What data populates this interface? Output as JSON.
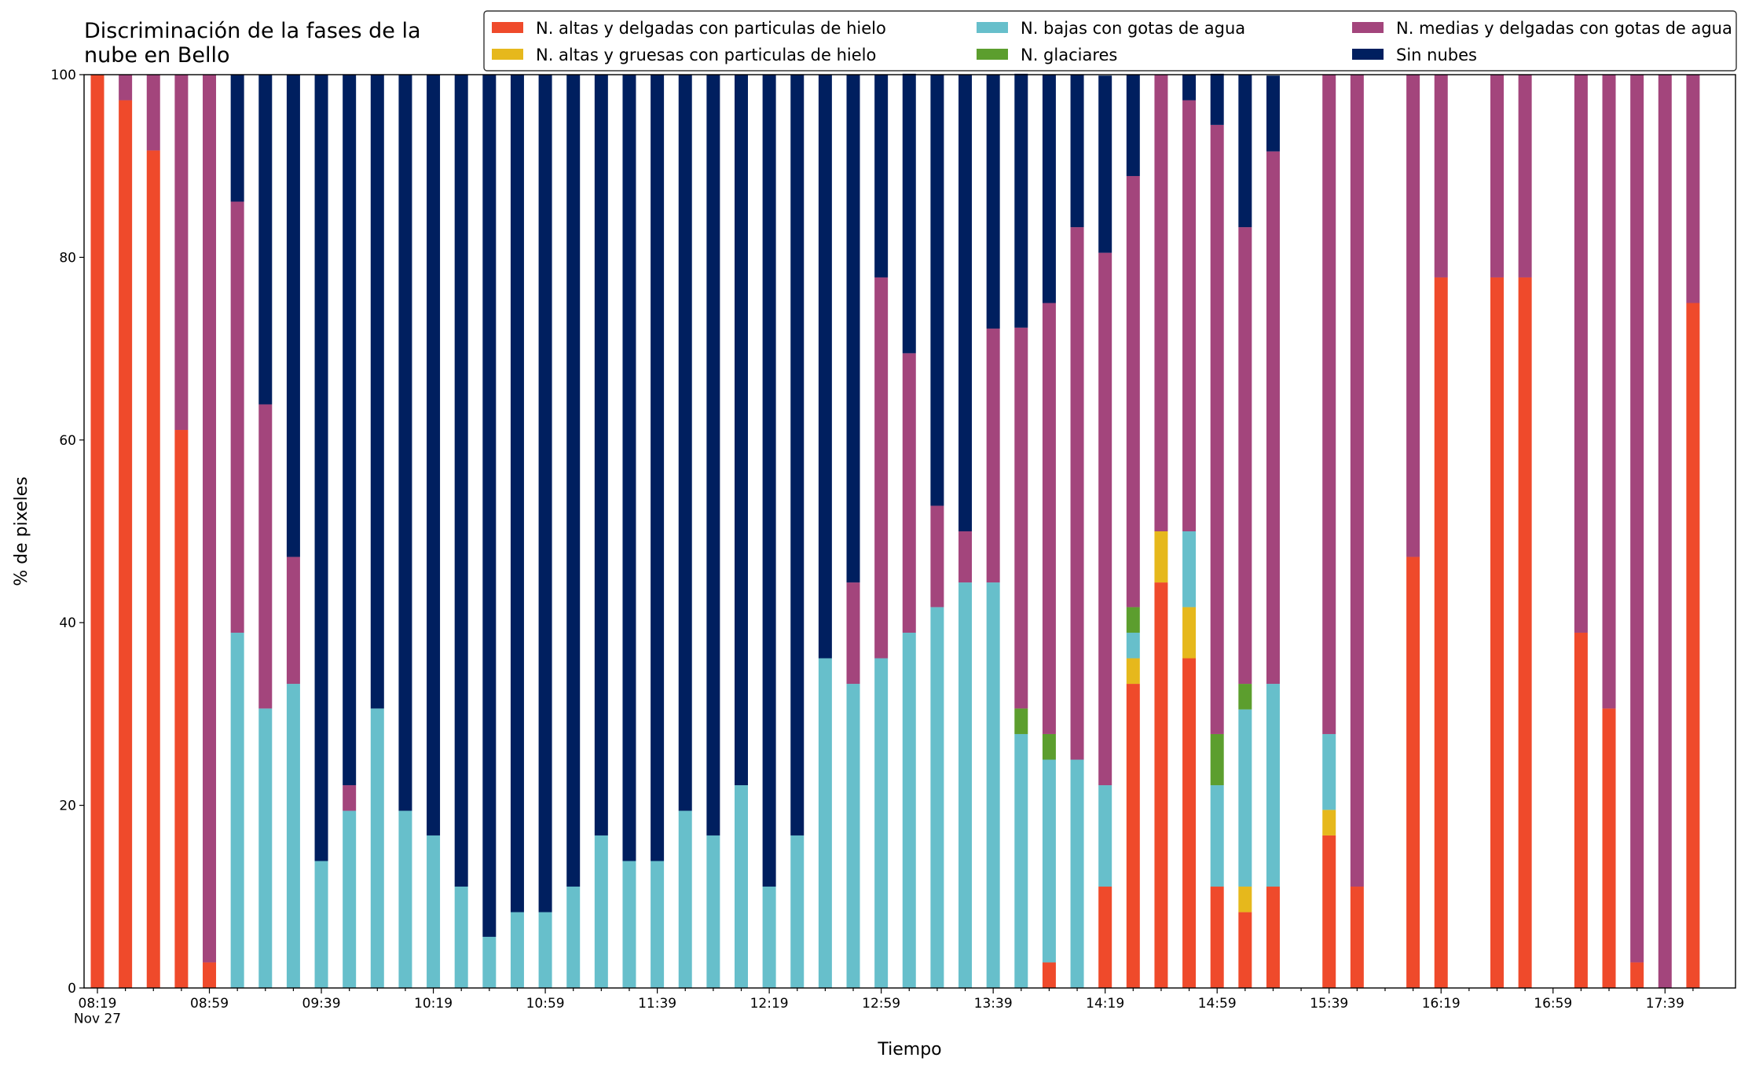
{
  "chart_data": {
    "type": "stacked_bar",
    "title": "Discriminación de la fases de la\nnube en Bello",
    "x_label": "Tiempo",
    "y_label": "% de pixeles",
    "ylim": [
      0,
      100
    ],
    "yticks": [
      0,
      20,
      40,
      60,
      80,
      100
    ],
    "grid": false,
    "legend": "upper right",
    "categories": [
      "08:19\nNov 27",
      null,
      null,
      null,
      "08:59",
      null,
      null,
      null,
      "09:39",
      null,
      null,
      null,
      "10:19",
      null,
      null,
      null,
      "10:59",
      null,
      null,
      null,
      "11:39",
      null,
      null,
      null,
      "12:19",
      null,
      null,
      null,
      "12:59",
      null,
      null,
      null,
      "13:39",
      null,
      null,
      null,
      "14:19",
      null,
      null,
      null,
      "14:59",
      null,
      null,
      null,
      "15:39",
      null,
      null,
      null,
      "16:19",
      null,
      null,
      null,
      "16:59",
      null,
      null,
      null,
      "17:39",
      null
    ],
    "series": [
      {
        "name": "N. altas y delgadas con particulas de hielo",
        "color": "#ef4a2b",
        "values": [
          100,
          97.2,
          91.7,
          61.1,
          2.8,
          0,
          0,
          0,
          0,
          0,
          0,
          0,
          0,
          0,
          0,
          0,
          0,
          0,
          0,
          0,
          0,
          0,
          0,
          0,
          0,
          0,
          0,
          0,
          0,
          0,
          0,
          0,
          0,
          0,
          2.8,
          0,
          11.1,
          33.3,
          44.4,
          36.1,
          11.1,
          8.3,
          11.1,
          0,
          16.7,
          11.1,
          0,
          47.2,
          77.8,
          0,
          77.8,
          77.8,
          0,
          38.9,
          30.6,
          2.8,
          0,
          75
        ]
      },
      {
        "name": "N. altas y gruesas con particulas de hielo",
        "color": "#e6b81c",
        "values": [
          0,
          0,
          0,
          0,
          0,
          0,
          0,
          0,
          0,
          0,
          0,
          0,
          0,
          0,
          0,
          0,
          0,
          0,
          0,
          0,
          0,
          0,
          0,
          0,
          0,
          0,
          0,
          0,
          0,
          0,
          0,
          0,
          0,
          0,
          0,
          0,
          0,
          2.8,
          5.6,
          5.6,
          0,
          2.8,
          0,
          0,
          2.8,
          0,
          0,
          0,
          0,
          0,
          0,
          0,
          0,
          0,
          0,
          0,
          0,
          0
        ]
      },
      {
        "name": "N. bajas con gotas de agua",
        "color": "#67bfcb",
        "values": [
          0,
          0,
          0,
          0,
          0,
          38.9,
          30.6,
          33.3,
          13.9,
          19.4,
          30.6,
          19.4,
          16.7,
          11.1,
          5.6,
          8.3,
          8.3,
          11.1,
          16.7,
          13.9,
          13.9,
          19.4,
          16.7,
          22.2,
          11.1,
          16.7,
          36.1,
          33.3,
          36.1,
          38.9,
          41.7,
          44.4,
          44.4,
          27.8,
          22.2,
          25,
          11.1,
          2.8,
          0,
          8.3,
          11.1,
          19.4,
          22.2,
          0,
          8.3,
          0,
          0,
          0,
          0,
          0,
          0,
          0,
          0,
          0,
          0,
          0,
          0,
          0
        ]
      },
      {
        "name": "N. glaciares",
        "color": "#5c9e2e",
        "values": [
          0,
          0,
          0,
          0,
          0,
          0,
          0,
          0,
          0,
          0,
          0,
          0,
          0,
          0,
          0,
          0,
          0,
          0,
          0,
          0,
          0,
          0,
          0,
          0,
          0,
          0,
          0,
          0,
          0,
          0,
          0,
          0,
          0,
          2.8,
          2.8,
          0,
          0,
          2.8,
          0,
          0,
          5.6,
          2.8,
          0,
          0,
          0,
          0,
          0,
          0,
          0,
          0,
          0,
          0,
          0,
          0,
          0,
          0,
          0,
          0
        ]
      },
      {
        "name": "N. medias y delgadas con gotas de agua",
        "color": "#a3457c",
        "values": [
          0,
          2.8,
          8.3,
          38.9,
          97.2,
          47.2,
          33.3,
          13.9,
          0,
          2.8,
          0,
          0,
          0,
          0,
          0,
          0,
          0,
          0,
          0,
          0,
          0,
          0,
          0,
          0,
          0,
          0,
          0,
          11.1,
          41.7,
          30.6,
          11.1,
          5.6,
          27.8,
          41.7,
          47.2,
          58.3,
          58.3,
          47.2,
          50,
          47.2,
          66.7,
          50,
          58.3,
          0,
          72.2,
          88.9,
          0,
          52.8,
          22.2,
          0,
          22.2,
          22.2,
          0,
          61.1,
          69.4,
          97.2,
          100,
          25
        ]
      },
      {
        "name": "Sin nubes",
        "color": "#001f5f",
        "values": [
          0,
          0,
          0,
          0,
          0,
          13.9,
          36.1,
          52.8,
          86.1,
          77.8,
          69.4,
          80.6,
          83.3,
          88.9,
          94.4,
          91.7,
          91.7,
          88.9,
          83.3,
          86.1,
          86.1,
          80.6,
          83.3,
          77.8,
          88.9,
          83.3,
          63.9,
          55.6,
          22.2,
          30.6,
          47.2,
          50,
          27.8,
          27.8,
          25,
          16.7,
          19.4,
          11.1,
          0,
          2.8,
          5.6,
          16.7,
          8.3,
          0,
          0,
          0,
          0,
          0,
          0,
          0,
          0,
          0,
          0,
          0,
          0,
          0,
          0,
          0
        ]
      }
    ]
  }
}
